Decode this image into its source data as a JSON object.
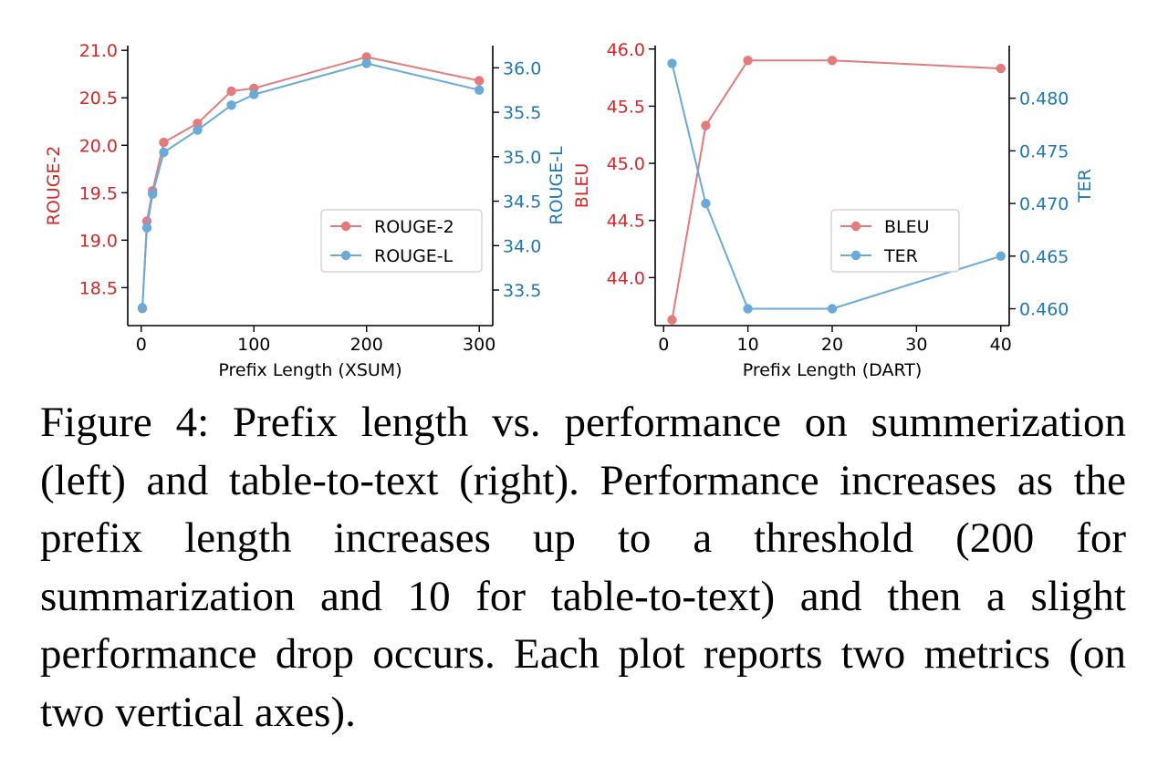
{
  "colors": {
    "red": "#d62728",
    "blue": "#1f77b4",
    "red_line": "#e37b7c",
    "blue_line": "#6aaad8"
  },
  "chart_data": [
    {
      "type": "line",
      "xlabel": "Prefix Length (XSUM)",
      "xlim": [
        -12,
        312
      ],
      "xticks": [
        0,
        100,
        200,
        300
      ],
      "x": [
        1,
        5,
        10,
        20,
        50,
        80,
        100,
        200,
        300
      ],
      "left_axis": {
        "label": "ROUGE-2",
        "ylim": [
          18.1,
          21.05
        ],
        "ticks": [
          18.5,
          19.0,
          19.5,
          20.0,
          20.5,
          21.0
        ],
        "tick_labels": [
          "18.5",
          "19.0",
          "19.5",
          "20.0",
          "20.5",
          "21.0"
        ]
      },
      "right_axis": {
        "label": "ROUGE-L",
        "ylim": [
          33.1,
          36.25
        ],
        "ticks": [
          33.5,
          34.0,
          34.5,
          35.0,
          35.5,
          36.0
        ],
        "tick_labels": [
          "33.5",
          "34.0",
          "34.5",
          "35.0",
          "35.5",
          "36.0"
        ]
      },
      "series": [
        {
          "name": "ROUGE-2",
          "axis": "left",
          "color": "#e37b7c",
          "values": [
            18.28,
            19.2,
            19.52,
            20.03,
            20.23,
            20.57,
            20.6,
            20.93,
            20.68
          ]
        },
        {
          "name": "ROUGE-L",
          "axis": "right",
          "color": "#6aaad8",
          "values": [
            33.3,
            34.2,
            34.58,
            35.05,
            35.3,
            35.58,
            35.7,
            36.05,
            35.75
          ]
        }
      ],
      "legend": "center-right"
    },
    {
      "type": "line",
      "xlabel": "Prefix Length (DART)",
      "xlim": [
        -1,
        41
      ],
      "xticks": [
        0,
        10,
        20,
        30,
        40
      ],
      "x": [
        1,
        5,
        10,
        20,
        40
      ],
      "left_axis": {
        "label": "BLEU",
        "ylim": [
          43.58,
          46.03
        ],
        "ticks": [
          44.0,
          44.5,
          45.0,
          45.5,
          46.0
        ],
        "tick_labels": [
          "44.0",
          "44.5",
          "45.0",
          "45.5",
          "46.0"
        ]
      },
      "right_axis": {
        "label": "TER",
        "ylim": [
          0.4584,
          0.485
        ],
        "ticks": [
          0.46,
          0.465,
          0.47,
          0.475,
          0.48
        ],
        "tick_labels": [
          "0.460",
          "0.465",
          "0.470",
          "0.475",
          "0.480"
        ]
      },
      "series": [
        {
          "name": "BLEU",
          "axis": "left",
          "color": "#e37b7c",
          "values": [
            43.63,
            45.33,
            45.9,
            45.9,
            45.83
          ]
        },
        {
          "name": "TER",
          "axis": "right",
          "color": "#6aaad8",
          "values": [
            0.4833,
            0.47,
            0.46,
            0.46,
            0.465
          ]
        }
      ],
      "legend": "center-right"
    }
  ],
  "caption": "Figure 4:  Prefix length vs. performance on summerization (left) and table-to-text (right). Performance increases as the prefix length increases up to a threshold (200 for summarization and 10 for table-to-text) and then a slight performance drop occurs. Each plot reports two metrics (on two vertical axes)."
}
